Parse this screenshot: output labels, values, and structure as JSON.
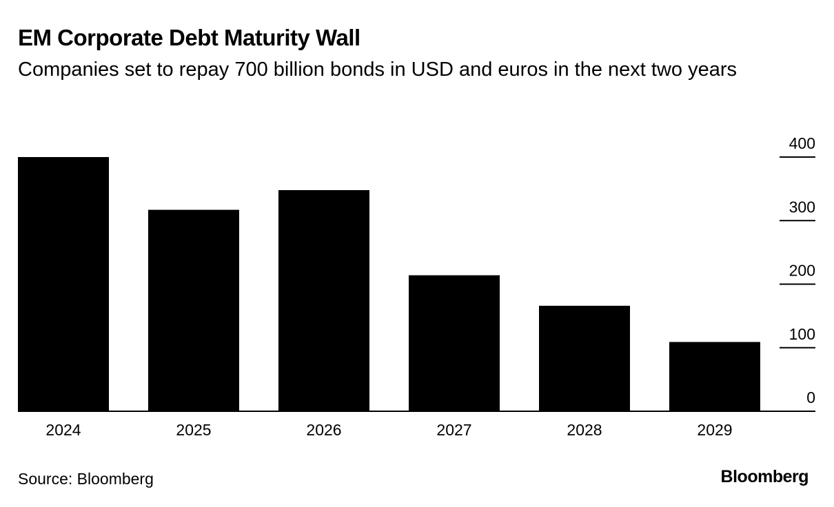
{
  "chart_data": {
    "type": "bar",
    "title": "EM Corporate Debt Maturity Wall",
    "subtitle": "Companies set to repay 700 billion bonds in USD and euros in the next two years",
    "categories": [
      "2024",
      "2025",
      "2026",
      "2027",
      "2028",
      "2029"
    ],
    "values": [
      400,
      317,
      348,
      214,
      166,
      109
    ],
    "ylim": [
      0,
      400
    ],
    "yticks": [
      "0",
      "100",
      "200",
      "300",
      "400"
    ],
    "xlabel": "",
    "ylabel": "",
    "bar_color": "#000000",
    "axis_position": "right"
  },
  "footer": {
    "source": "Source: Bloomberg",
    "brand": "Bloomberg"
  }
}
